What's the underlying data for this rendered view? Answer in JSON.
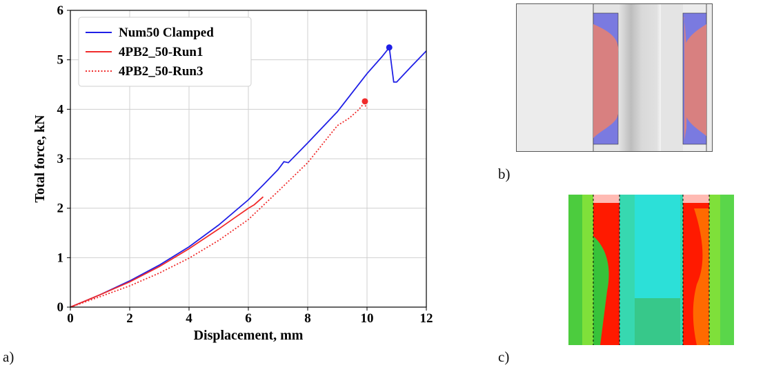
{
  "panel_labels": {
    "a": "a)",
    "b": "b)",
    "c": "c)"
  },
  "colors": {
    "blue": "#1f1fe6",
    "red": "#f02a2a",
    "axis": "#000000",
    "grid": "#cfcfcf"
  },
  "chart_data": {
    "type": "line",
    "title": "",
    "xlabel": "Displacement, mm",
    "ylabel": "Total force, kN",
    "xlim": [
      0,
      12
    ],
    "ylim": [
      0,
      6
    ],
    "xticks": [
      "0",
      "2",
      "4",
      "6",
      "8",
      "10",
      "12"
    ],
    "yticks": [
      "0",
      "1",
      "2",
      "3",
      "4",
      "5",
      "6"
    ],
    "grid": true,
    "legend_position": "top-left",
    "series": [
      {
        "name": "Num50 Clamped",
        "color": "#1f1fe6",
        "style": "solid",
        "x": [
          0,
          1,
          2,
          3,
          4,
          5,
          6,
          6.5,
          7,
          7.2,
          7.35,
          8,
          9,
          10,
          10.5,
          10.75,
          10.9,
          11,
          11.5,
          12
        ],
        "y": [
          0,
          0.25,
          0.53,
          0.85,
          1.22,
          1.66,
          2.17,
          2.47,
          2.78,
          2.94,
          2.92,
          3.32,
          3.95,
          4.72,
          5.06,
          5.25,
          4.55,
          4.55,
          4.87,
          5.18
        ],
        "marker_point": {
          "x": 10.75,
          "y": 5.25
        }
      },
      {
        "name": "4PB2_50-Run1",
        "color": "#f02a2a",
        "style": "solid",
        "x": [
          0,
          1,
          2,
          3,
          4,
          5,
          5.5,
          6,
          6.2,
          6.5
        ],
        "y": [
          0,
          0.25,
          0.51,
          0.82,
          1.18,
          1.58,
          1.79,
          2.0,
          2.07,
          2.23
        ]
      },
      {
        "name": "4PB2_50-Run3",
        "color": "#f02a2a",
        "style": "dotted",
        "x": [
          0,
          1,
          2,
          3,
          4,
          5,
          6,
          7,
          8,
          9,
          9.4,
          9.7,
          9.9,
          10.0
        ],
        "y": [
          0,
          0.21,
          0.43,
          0.69,
          0.99,
          1.35,
          1.77,
          2.34,
          2.92,
          3.67,
          3.82,
          3.98,
          4.12,
          4.02
        ],
        "marker_point": {
          "x": 9.93,
          "y": 4.16
        }
      }
    ]
  }
}
